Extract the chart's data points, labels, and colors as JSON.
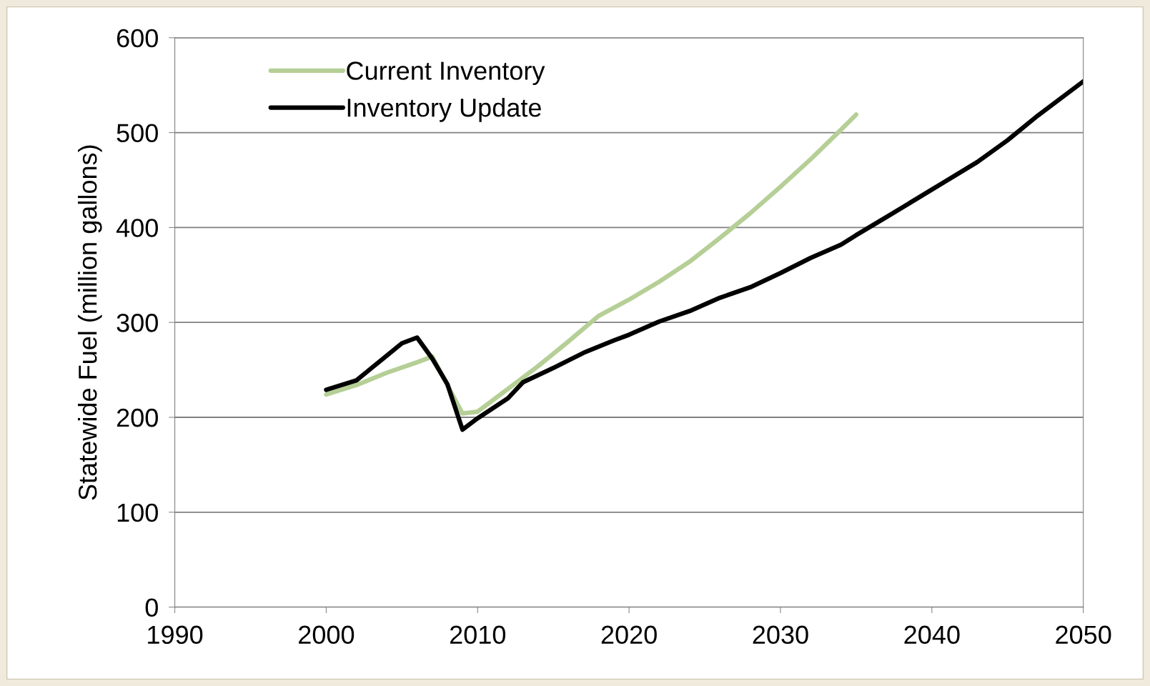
{
  "chart_data": {
    "type": "line",
    "ylabel": "Statewide Fuel (million gallons)",
    "xlim": [
      1990,
      2050
    ],
    "xticks": [
      1990,
      2000,
      2010,
      2020,
      2030,
      2040,
      2050
    ],
    "ylim": [
      0,
      600
    ],
    "yticks": [
      0,
      100,
      200,
      300,
      400,
      500,
      600
    ],
    "grid": "y",
    "legend": "top left",
    "marker": "none",
    "line_style": "solid",
    "series": [
      {
        "name": "Current Inventory",
        "color": "#b5cf96",
        "x": [
          2000,
          2002,
          2004,
          2006,
          2007,
          2009,
          2010,
          2012,
          2014,
          2016,
          2018,
          2020,
          2022,
          2024,
          2026,
          2028,
          2030,
          2032,
          2034,
          2035
        ],
        "values": [
          224,
          234,
          247,
          258,
          264,
          204,
          206,
          230,
          254,
          280,
          307,
          324,
          343,
          364,
          389,
          415,
          443,
          472,
          503,
          519
        ]
      },
      {
        "name": "Inventory Update",
        "color": "#000000",
        "x": [
          2000,
          2002,
          2003,
          2005,
          2006,
          2007,
          2008,
          2009,
          2010,
          2012,
          2013,
          2015,
          2017,
          2019,
          2020,
          2022,
          2024,
          2026,
          2028,
          2030,
          2032,
          2034,
          2035,
          2037,
          2040,
          2043,
          2045,
          2047,
          2050
        ],
        "values": [
          229,
          239,
          252,
          278,
          284,
          262,
          235,
          187,
          199,
          220,
          237,
          252,
          268,
          281,
          287,
          301,
          312,
          326,
          337,
          352,
          368,
          382,
          392,
          411,
          440,
          469,
          492,
          518,
          554
        ]
      }
    ]
  }
}
